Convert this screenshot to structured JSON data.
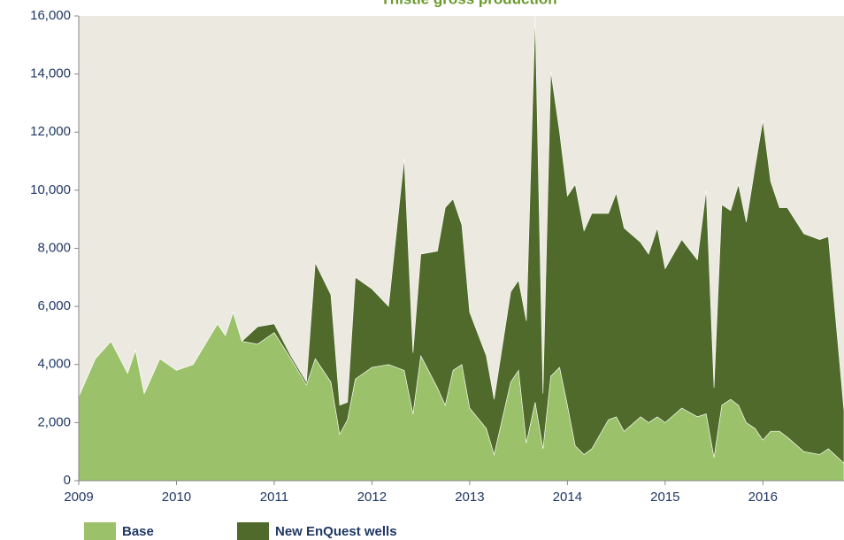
{
  "chart_data": {
    "type": "stacked_area",
    "title": "Thistle gross production",
    "x": [
      2009.0,
      2009.17,
      2009.33,
      2009.5,
      2009.58,
      2009.67,
      2009.83,
      2010.0,
      2010.17,
      2010.33,
      2010.42,
      2010.5,
      2010.58,
      2010.67,
      2010.83,
      2011.0,
      2011.17,
      2011.33,
      2011.42,
      2011.58,
      2011.67,
      2011.75,
      2011.83,
      2012.0,
      2012.17,
      2012.33,
      2012.42,
      2012.5,
      2012.67,
      2012.75,
      2012.83,
      2012.92,
      2013.0,
      2013.17,
      2013.25,
      2013.42,
      2013.5,
      2013.58,
      2013.67,
      2013.75,
      2013.83,
      2013.92,
      2014.0,
      2014.08,
      2014.17,
      2014.25,
      2014.42,
      2014.5,
      2014.58,
      2014.75,
      2014.83,
      2014.92,
      2015.0,
      2015.17,
      2015.33,
      2015.42,
      2015.5,
      2015.58,
      2015.67,
      2015.75,
      2015.83,
      2015.92,
      2016.0,
      2016.08,
      2016.17,
      2016.25,
      2016.42,
      2016.58,
      2016.67,
      2016.83
    ],
    "series": [
      {
        "name": "Base",
        "color": "#9bc26b",
        "values": [
          2900,
          4200,
          4800,
          3700,
          4500,
          3000,
          4200,
          3800,
          4000,
          4900,
          5400,
          5000,
          5800,
          4800,
          4700,
          5100,
          4200,
          3300,
          4200,
          3400,
          1600,
          2100,
          3500,
          3900,
          4000,
          3800,
          2300,
          4300,
          3200,
          2600,
          3800,
          4000,
          2500,
          1800,
          900,
          3400,
          3800,
          1300,
          2700,
          1100,
          3600,
          3900,
          2600,
          1200,
          900,
          1100,
          2100,
          2200,
          1700,
          2200,
          2000,
          2200,
          2000,
          2500,
          2200,
          2300,
          800,
          2600,
          2800,
          2600,
          2000,
          1800,
          1400,
          1700,
          1700,
          1500,
          1000,
          900,
          1100,
          600
        ]
      },
      {
        "name": "New EnQuest wells",
        "color": "#4f6a2a",
        "values": [
          0,
          0,
          0,
          0,
          0,
          0,
          0,
          0,
          0,
          0,
          0,
          0,
          0,
          0,
          600,
          300,
          100,
          100,
          3300,
          3000,
          1000,
          600,
          3500,
          2700,
          2000,
          7300,
          2100,
          3500,
          4700,
          6800,
          5900,
          4800,
          3300,
          2500,
          1900,
          3100,
          3100,
          4200,
          13300,
          1900,
          10500,
          8100,
          7200,
          9000,
          7700,
          8100,
          7100,
          7700,
          7000,
          6000,
          5800,
          6500,
          5300,
          5800,
          5400,
          7700,
          2400,
          6900,
          6500,
          7600,
          6900,
          9000,
          11000,
          8600,
          7700,
          7900,
          7500,
          7400,
          7300,
          1800
        ]
      }
    ],
    "xlim": [
      2009,
      2016.83
    ],
    "xticks": [
      2009,
      2010,
      2011,
      2012,
      2013,
      2014,
      2015,
      2016
    ],
    "ylim": [
      0,
      16000
    ],
    "yticks": [
      0,
      {
        "value": 2000,
        "label": "2,000"
      },
      {
        "value": 4000,
        "label": "4,000"
      },
      {
        "value": 6000,
        "label": "6,000"
      },
      {
        "value": 8000,
        "label": "8,000"
      },
      {
        "value": 10000,
        "label": "10,000"
      },
      {
        "value": 12000,
        "label": "12,000"
      },
      {
        "value": 14000,
        "label": "14,000"
      },
      {
        "value": 16000,
        "label": "16,000"
      }
    ]
  }
}
